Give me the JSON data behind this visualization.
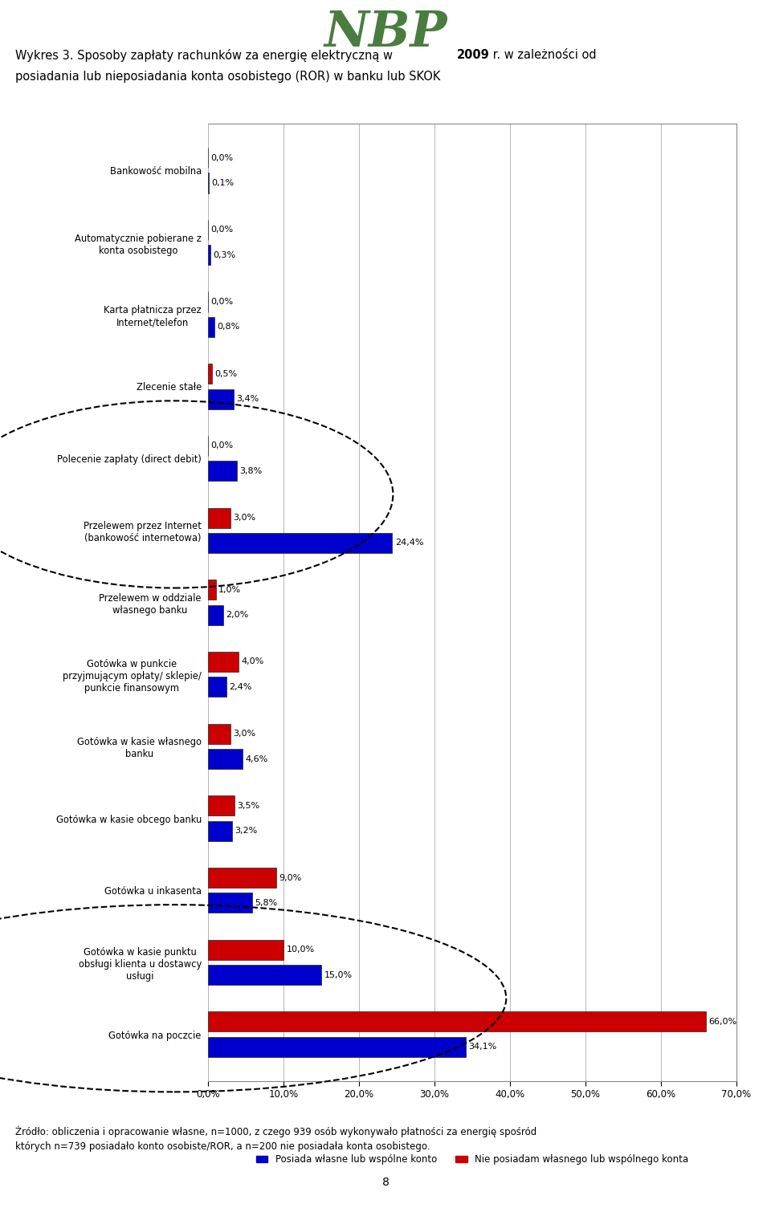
{
  "categories": [
    "Bankowość mobilna",
    "Automatycznie pobierane z\nkonta osobistego",
    "Karta płatnicza przez\nInternet/telefon",
    "Zlecenie stałe",
    "Polecenie zapłaty (direct debit)",
    "Przelewem przez Internet\n(bankowość internetowa)",
    "Przelewem w oddziale\nwłasnego banku",
    "Gotówka w punkcie\nprzyjmującym opłaty/ sklepie/\npunkcie finansowym",
    "Gotówka w kasie własnego\nbanku",
    "Gotówka w kasie obcego banku",
    "Gotówka u inkasenta",
    "Gotówka w kasie punktu\nobsługi klienta u dostawcy\nusługi",
    "Gotówka na poczcie"
  ],
  "red_values": [
    0.0,
    0.0,
    0.0,
    0.5,
    0.0,
    3.0,
    1.0,
    4.0,
    3.0,
    3.5,
    9.0,
    10.0,
    66.0
  ],
  "blue_values": [
    0.1,
    0.3,
    0.8,
    3.4,
    3.8,
    24.4,
    2.0,
    2.4,
    4.6,
    3.2,
    5.8,
    15.0,
    34.1
  ],
  "red_labels": [
    "0,0%",
    "0,0%",
    "0,0%",
    "0,5%",
    "0,0%",
    "3,0%",
    "1,0%",
    "4,0%",
    "3,0%",
    "3,5%",
    "9,0%",
    "10,0%",
    "66,0%"
  ],
  "blue_labels": [
    "0,1%",
    "0,3%",
    "0,8%",
    "3,4%",
    "3,8%",
    "24,4%",
    "2,0%",
    "2,4%",
    "4,6%",
    "3,2%",
    "5,8%",
    "15,0%",
    "34,1%"
  ],
  "red_color": "#cc0000",
  "blue_color": "#0000cc",
  "legend_blue": "Posiada własne lub wspólne konto",
  "legend_red": "Nie posiadam własnego lub wspólnego konta",
  "xticks": [
    0.0,
    10.0,
    20.0,
    30.0,
    40.0,
    50.0,
    60.0,
    70.0
  ],
  "xtick_labels": [
    "0,0%",
    "10,0%",
    "20,0%",
    "30,0%",
    "40,0%",
    "50,0%",
    "60,0%",
    "70,0%"
  ],
  "footer_line1": "Źródło: obliczenia i opracowanie własne, n=1000, z czego 939 osób wykonywało płatności za energię spośród",
  "footer_line2": "których n=739 posiadało konto osobiste/ROR, a n=200 nie posiadała konta osobistego.",
  "nbp_color": "#4a7c3f",
  "title1": "Wykres 3. Sposoby zapłaty rachunków za energię elektryczną w ",
  "title_bold": "2009",
  "title2": " r. w zależności od",
  "title3": "posiadania lub nieposiadania konta osobistego (ROR) w banku lub SKOK",
  "page_num": "8",
  "dashed1_cat_indices": [
    4,
    5
  ],
  "dashed2_cat_indices": [
    11,
    12
  ]
}
